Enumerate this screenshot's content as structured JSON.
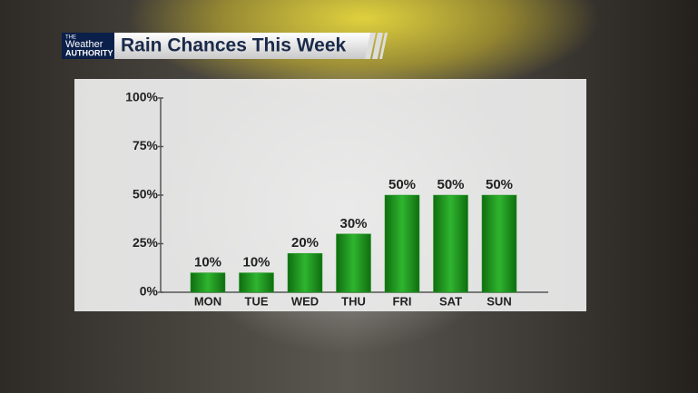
{
  "branding": {
    "logo": [
      "THE",
      "Weather",
      "AUTHORITY"
    ]
  },
  "chart_data": {
    "type": "bar",
    "title": "Rain Chances This Week",
    "categories": [
      "MON",
      "TUE",
      "WED",
      "THU",
      "FRI",
      "SAT",
      "SUN"
    ],
    "values": [
      10,
      10,
      20,
      30,
      50,
      50,
      50
    ],
    "value_labels": [
      "10%",
      "10%",
      "20%",
      "30%",
      "50%",
      "50%",
      "50%"
    ],
    "color": "#1e9a1e",
    "ylim": [
      0,
      100
    ],
    "yticks": [
      {
        "value": 0,
        "label": "0%"
      },
      {
        "value": 25,
        "label": "25%"
      },
      {
        "value": 50,
        "label": "50%"
      },
      {
        "value": 75,
        "label": "75%"
      },
      {
        "value": 100,
        "label": "100%"
      }
    ]
  }
}
